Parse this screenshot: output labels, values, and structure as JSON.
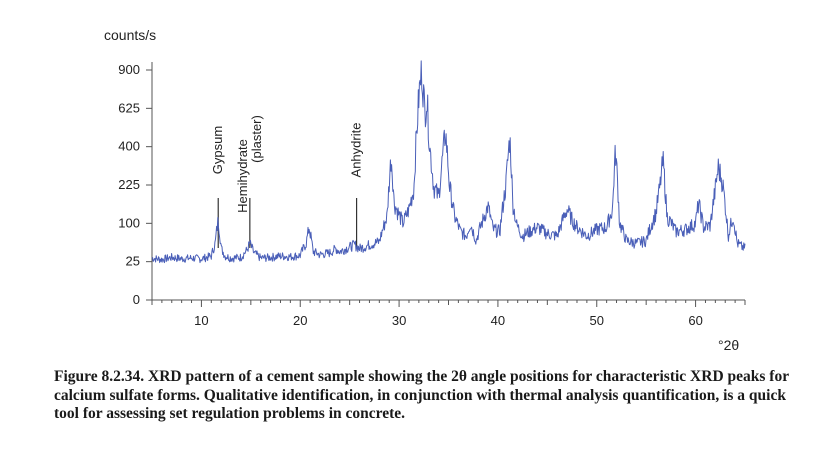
{
  "chart_data": {
    "type": "line",
    "ylabel": "counts/s",
    "xlabel": "°2θ",
    "xlim": [
      5,
      65
    ],
    "ylim": [
      0,
      900
    ],
    "y_scale": "sqrt",
    "x_ticks": [
      10,
      20,
      30,
      40,
      50,
      60
    ],
    "y_ticks": [
      0,
      25,
      100,
      225,
      400,
      625,
      900
    ],
    "x_tick_labels": [
      "10",
      "20",
      "30",
      "40",
      "50",
      "60"
    ],
    "y_tick_labels": [
      "0",
      "25",
      "100",
      "225",
      "400",
      "625",
      "900"
    ],
    "series": [
      {
        "name": "XRD pattern",
        "color": "#4a5fb8",
        "x": [
          5,
          6,
          7,
          8,
          9,
          10,
          11,
          11.4,
          11.7,
          12.0,
          12.4,
          13,
          14,
          14.6,
          14.9,
          15.3,
          16,
          17,
          18,
          19,
          20,
          20.6,
          20.9,
          21.3,
          22,
          23,
          23.6,
          24,
          25,
          25.5,
          26,
          27,
          28,
          28.8,
          29.2,
          29.5,
          29.9,
          30.4,
          31.0,
          31.5,
          32.0,
          32.3,
          32.6,
          32.8,
          33.1,
          33.5,
          34.0,
          34.3,
          34.7,
          35.1,
          35.6,
          36.2,
          36.8,
          37.2,
          37.8,
          38.5,
          39.0,
          39.5,
          40.2,
          40.8,
          41.2,
          41.5,
          41.9,
          42.5,
          43.2,
          44.0,
          45.0,
          46.0,
          47.0,
          47.5,
          48.0,
          49.0,
          50.0,
          51.0,
          51.6,
          51.9,
          52.3,
          53.0,
          54.0,
          55.0,
          56.0,
          56.4,
          56.7,
          57.1,
          58.0,
          59.0,
          60.0,
          60.3,
          60.8,
          61.5,
          62.0,
          62.3,
          62.7,
          63.3,
          63.8,
          64.2,
          64.7,
          65.0
        ],
        "y": [
          30,
          28,
          31,
          29,
          30,
          29,
          33,
          55,
          110,
          45,
          33,
          30,
          31,
          42,
          55,
          38,
          30,
          31,
          33,
          32,
          34,
          55,
          90,
          40,
          35,
          38,
          45,
          40,
          48,
          52,
          45,
          52,
          58,
          120,
          350,
          160,
          130,
          100,
          140,
          210,
          700,
          900,
          600,
          700,
          400,
          220,
          180,
          300,
          480,
          220,
          120,
          80,
          70,
          100,
          60,
          110,
          150,
          85,
          80,
          220,
          450,
          160,
          95,
          70,
          80,
          90,
          75,
          70,
          140,
          110,
          90,
          70,
          85,
          90,
          140,
          380,
          100,
          60,
          55,
          60,
          130,
          220,
          330,
          120,
          80,
          85,
          100,
          160,
          90,
          95,
          210,
          300,
          240,
          70,
          120,
          55,
          48,
          46
        ]
      }
    ],
    "annotations": [
      {
        "label": "Gypsum",
        "x": 11.7
      },
      {
        "label": "Hemihydrate\n(plaster)",
        "line1": "Hemihydrate",
        "line2": "(plaster)",
        "x": 14.9
      },
      {
        "label": "Anhydrite",
        "x": 25.7
      }
    ]
  },
  "caption": "Figure 8.2.34. XRD pattern of a cement sample showing the 2θ angle positions for characteristic XRD peaks for calcium sulfate forms. Qualitative identification, in conjunction with thermal analysis quantification, is a quick tool for assessing set regulation problems in concrete.",
  "colors": {
    "trace": "#4a5fb8",
    "axis": "#555555",
    "annotation_line": "#333333"
  }
}
